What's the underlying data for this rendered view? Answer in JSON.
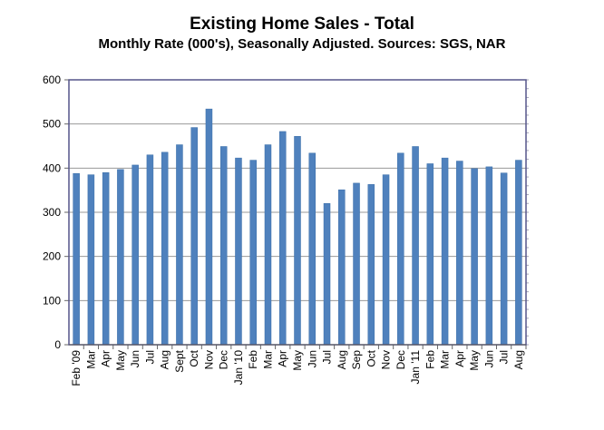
{
  "chart_data": {
    "type": "bar",
    "title": "Existing Home Sales - Total",
    "subtitle": "Monthly Rate (000's), Seasonally Adjusted.  Sources: SGS, NAR",
    "xlabel": "",
    "ylabel": "",
    "ylim": [
      0,
      600
    ],
    "yticks": [
      "0",
      "100",
      "200",
      "300",
      "400",
      "500",
      "600"
    ],
    "grid": true,
    "bar_color": "#4F81BD",
    "categories": [
      "Feb '09",
      "Mar",
      "Apr",
      "May",
      "Jun",
      "Jul",
      "Aug",
      "Sept",
      "Oct",
      "Nov",
      "Dec",
      "Jan '10",
      "Feb",
      "Mar",
      "Apr",
      "May",
      "Jun",
      "Jul",
      "Aug",
      "Sep",
      "Oct",
      "Nov",
      "Dec",
      "Jan '11",
      "Feb",
      "Mar",
      "Apr",
      "May",
      "Jun",
      "Jul",
      "Aug"
    ],
    "values": [
      388,
      385,
      390,
      397,
      407,
      430,
      436,
      453,
      492,
      534,
      449,
      423,
      418,
      453,
      483,
      472,
      434,
      320,
      351,
      366,
      363,
      385,
      434,
      449,
      410,
      423,
      416,
      399,
      403,
      389,
      418
    ]
  }
}
